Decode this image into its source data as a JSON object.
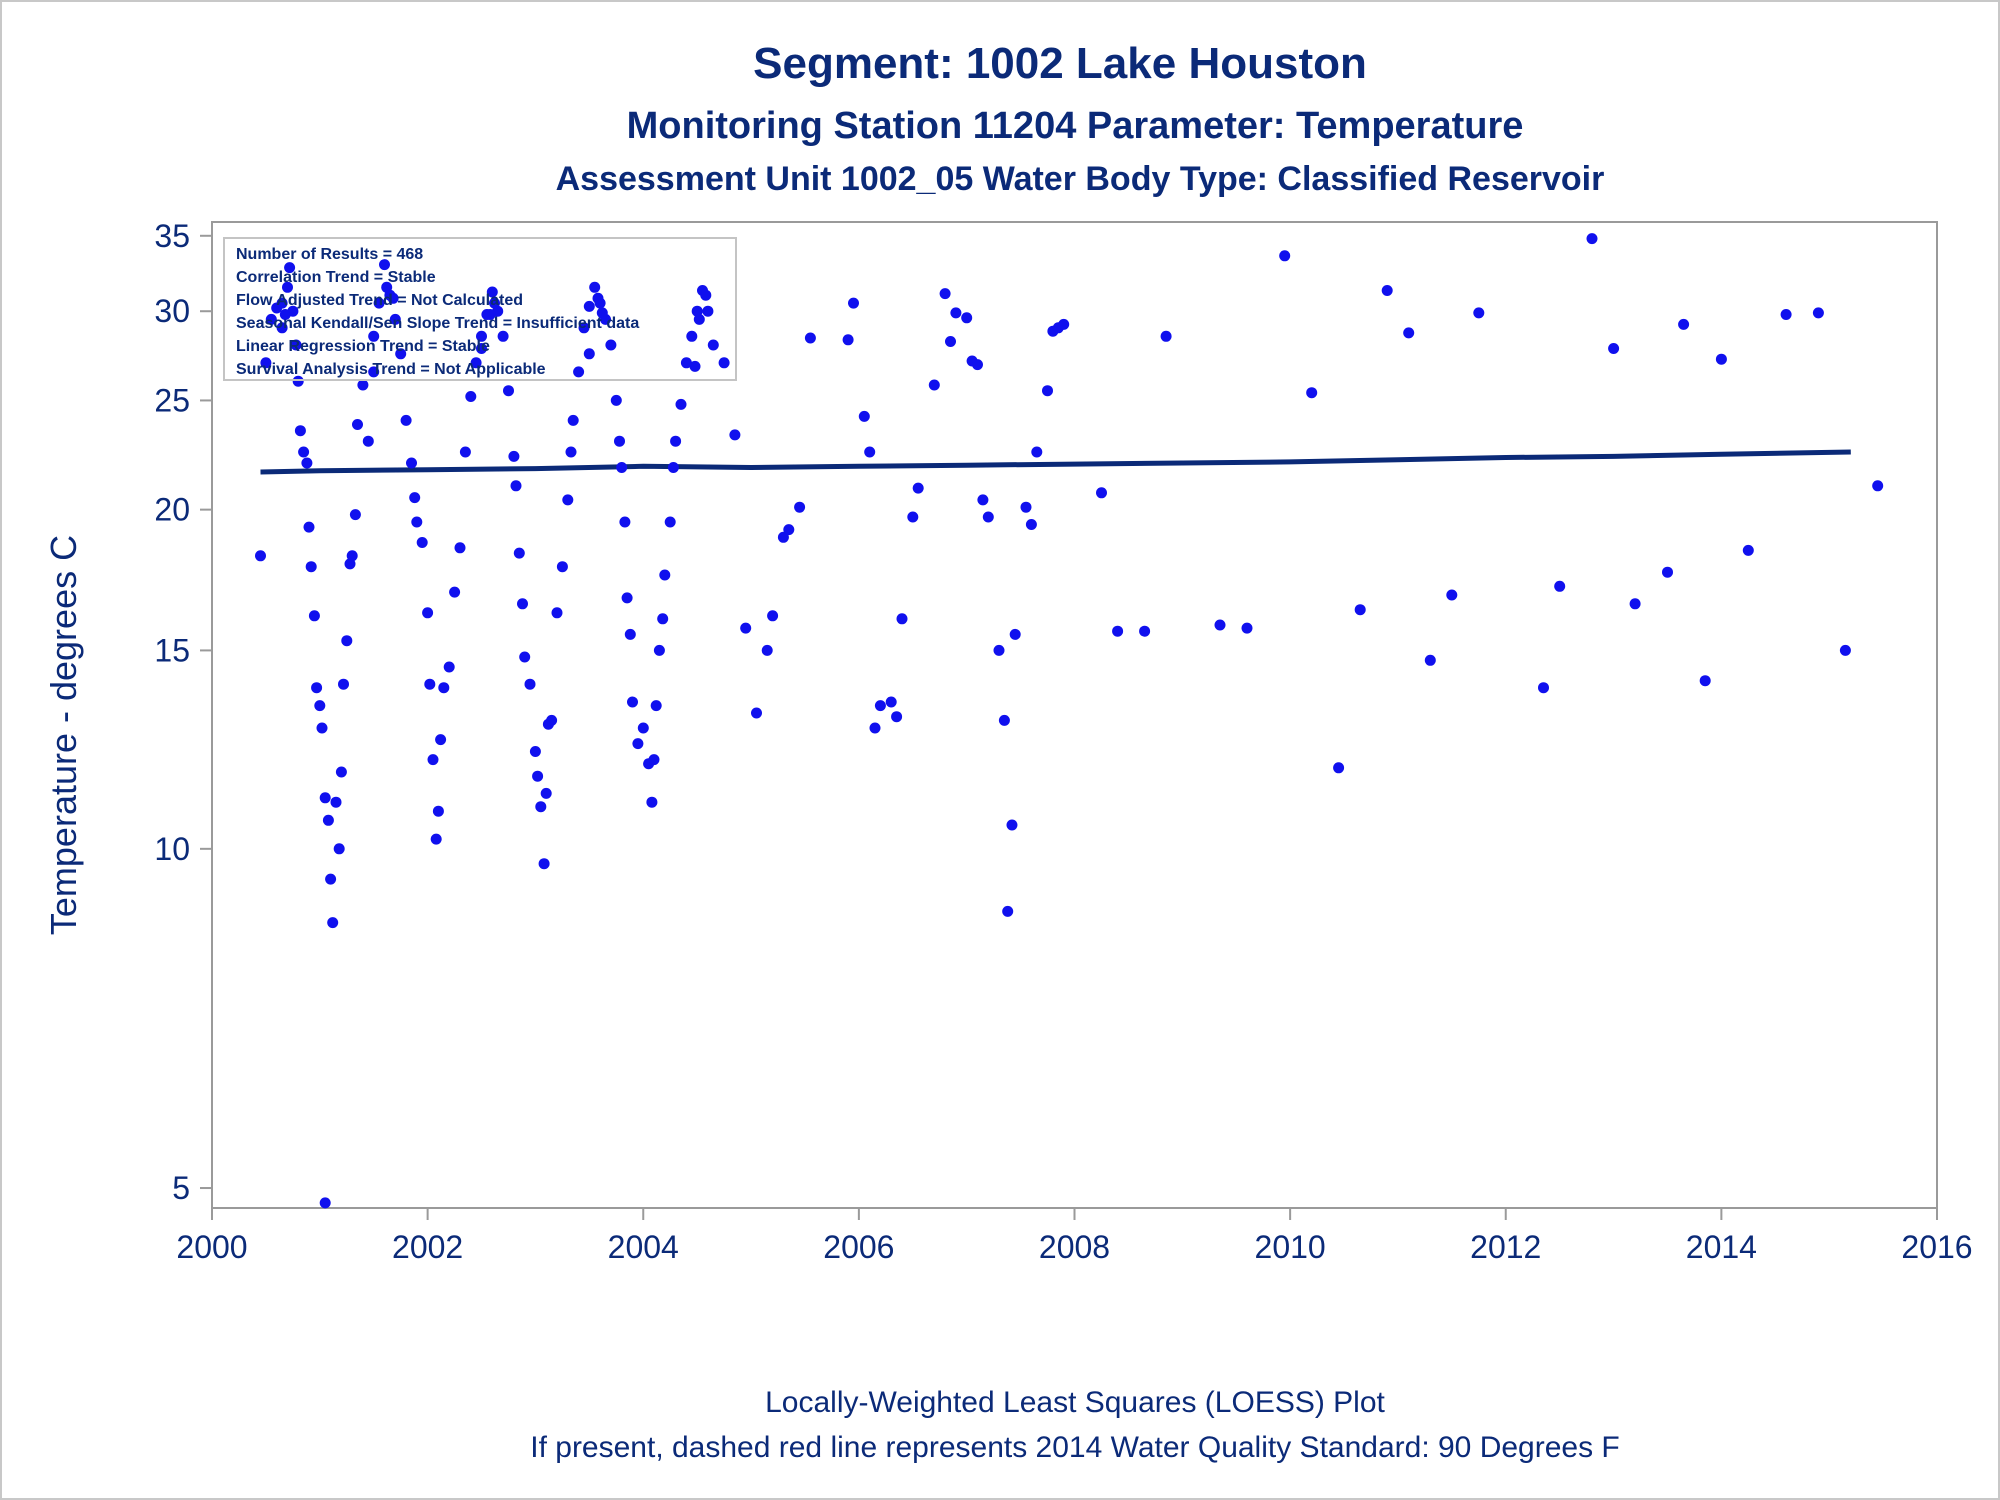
{
  "titles": {
    "line1": "Segment: 1002  Lake Houston",
    "line2": "Monitoring Station 11204 Parameter: Temperature",
    "line3": "Assessment Unit 1002_05   Water Body Type: Classified Reservoir"
  },
  "footnotes": {
    "line1": "Locally-Weighted Least Squares (LOESS) Plot",
    "line2": "If present, dashed red line represents 2014 Water Quality Standard: 90   Degrees F"
  },
  "stats_box": [
    "Number of Results = 468",
    "Correlation Trend = Stable",
    "Flow Adjusted Trend = Not Calculated",
    "Seasonal Kendall/Sen Slope Trend = Insufficient data",
    "Linear Regression Trend = Stable",
    "Survival Analysis Trend = Not Applicable"
  ],
  "colors": {
    "text": "#0b2a78",
    "points": "#1010ee",
    "loess": "#0b2a78",
    "axis": "#9a9a9a"
  },
  "chart_data": {
    "type": "scatter",
    "xlabel": "",
    "ylabel": "Temperature - degrees C",
    "y_scale": "log",
    "xlim": [
      2000,
      2016
    ],
    "ylim": [
      4.8,
      36
    ],
    "x_ticks": [
      2000,
      2002,
      2004,
      2006,
      2008,
      2010,
      2012,
      2014,
      2016
    ],
    "y_ticks": [
      5,
      10,
      15,
      20,
      25,
      30,
      35
    ],
    "legend": "top-left",
    "grid": false,
    "series": [
      {
        "type": "scatter",
        "points": [
          [
            2000.45,
            18.2
          ],
          [
            2000.5,
            27.0
          ],
          [
            2000.55,
            29.5
          ],
          [
            2000.6,
            30.2
          ],
          [
            2000.65,
            29.0
          ],
          [
            2000.7,
            31.5
          ],
          [
            2000.72,
            32.8
          ],
          [
            2000.75,
            30.0
          ],
          [
            2000.78,
            28.0
          ],
          [
            2000.8,
            26.0
          ],
          [
            2000.82,
            23.5
          ],
          [
            2000.85,
            22.5
          ],
          [
            2000.88,
            22.0
          ],
          [
            2000.9,
            19.3
          ],
          [
            2000.92,
            17.8
          ],
          [
            2000.95,
            16.1
          ],
          [
            2000.97,
            13.9
          ],
          [
            2001.0,
            13.4
          ],
          [
            2001.02,
            12.8
          ],
          [
            2001.05,
            11.1
          ],
          [
            2001.08,
            10.6
          ],
          [
            2001.1,
            9.4
          ],
          [
            2001.12,
            8.6
          ],
          [
            2001.15,
            11.0
          ],
          [
            2001.18,
            10.0
          ],
          [
            2001.2,
            11.7
          ],
          [
            2001.22,
            14.0
          ],
          [
            2001.25,
            15.3
          ],
          [
            2001.28,
            17.9
          ],
          [
            2001.3,
            18.2
          ],
          [
            2001.33,
            19.8
          ],
          [
            2001.35,
            23.8
          ],
          [
            2001.4,
            25.8
          ],
          [
            2001.45,
            23.0
          ],
          [
            2001.5,
            28.5
          ],
          [
            2001.55,
            30.5
          ],
          [
            2001.6,
            33.0
          ],
          [
            2001.65,
            31.0
          ],
          [
            2001.7,
            29.5
          ],
          [
            2001.75,
            27.5
          ],
          [
            2001.8,
            24.0
          ],
          [
            2001.85,
            22.0
          ],
          [
            2001.88,
            20.5
          ],
          [
            2001.9,
            19.5
          ],
          [
            2001.95,
            18.7
          ],
          [
            2002.0,
            16.2
          ],
          [
            2002.02,
            14.0
          ],
          [
            2002.05,
            12.0
          ],
          [
            2002.08,
            10.2
          ],
          [
            2002.1,
            10.8
          ],
          [
            2002.12,
            12.5
          ],
          [
            2002.15,
            13.9
          ],
          [
            2002.2,
            14.5
          ],
          [
            2002.25,
            16.9
          ],
          [
            2002.3,
            18.5
          ],
          [
            2002.35,
            22.5
          ],
          [
            2002.4,
            25.2
          ],
          [
            2002.45,
            27.0
          ],
          [
            2002.5,
            28.5
          ],
          [
            2002.55,
            29.8
          ],
          [
            2002.6,
            31.2
          ],
          [
            2002.65,
            30.0
          ],
          [
            2002.7,
            28.5
          ],
          [
            2002.75,
            25.5
          ],
          [
            2002.8,
            22.3
          ],
          [
            2002.82,
            21.0
          ],
          [
            2002.85,
            18.3
          ],
          [
            2002.88,
            16.5
          ],
          [
            2002.9,
            14.8
          ],
          [
            2002.95,
            14.0
          ],
          [
            2003.0,
            12.2
          ],
          [
            2003.02,
            11.6
          ],
          [
            2003.05,
            10.9
          ],
          [
            2003.08,
            9.7
          ],
          [
            2003.1,
            11.2
          ],
          [
            2003.12,
            12.9
          ],
          [
            2003.15,
            13.0
          ],
          [
            2003.2,
            16.2
          ],
          [
            2003.25,
            17.8
          ],
          [
            2003.3,
            20.4
          ],
          [
            2003.33,
            22.5
          ],
          [
            2003.35,
            24.0
          ],
          [
            2003.4,
            26.5
          ],
          [
            2003.45,
            29.0
          ],
          [
            2003.5,
            30.3
          ],
          [
            2003.55,
            31.5
          ],
          [
            2003.6,
            30.5
          ],
          [
            2003.65,
            29.5
          ],
          [
            2003.7,
            28.0
          ],
          [
            2003.75,
            25.0
          ],
          [
            2003.78,
            23.0
          ],
          [
            2003.8,
            21.8
          ],
          [
            2003.83,
            19.5
          ],
          [
            2003.85,
            16.7
          ],
          [
            2003.88,
            15.5
          ],
          [
            2003.9,
            13.5
          ],
          [
            2003.95,
            12.4
          ],
          [
            2004.0,
            12.8
          ],
          [
            2004.05,
            11.9
          ],
          [
            2004.08,
            11.0
          ],
          [
            2004.1,
            12.0
          ],
          [
            2004.12,
            13.4
          ],
          [
            2004.15,
            15.0
          ],
          [
            2004.18,
            16.0
          ],
          [
            2004.2,
            17.5
          ],
          [
            2004.25,
            19.5
          ],
          [
            2004.28,
            21.8
          ],
          [
            2004.3,
            23.0
          ],
          [
            2004.35,
            24.8
          ],
          [
            2004.4,
            27.0
          ],
          [
            2004.45,
            28.5
          ],
          [
            2004.5,
            30.0
          ],
          [
            2004.55,
            31.3
          ],
          [
            2004.6,
            30.0
          ],
          [
            2004.65,
            28.0
          ],
          [
            2004.75,
            27.0
          ],
          [
            2004.85,
            23.3
          ],
          [
            2004.95,
            15.7
          ],
          [
            2005.05,
            13.2
          ],
          [
            2005.15,
            15.0
          ],
          [
            2005.2,
            16.1
          ],
          [
            2005.3,
            18.9
          ],
          [
            2005.35,
            19.2
          ],
          [
            2005.45,
            20.1
          ],
          [
            2005.55,
            28.4
          ],
          [
            2005.9,
            28.3
          ],
          [
            2005.95,
            30.5
          ],
          [
            2006.05,
            24.2
          ],
          [
            2006.1,
            22.5
          ],
          [
            2006.15,
            12.8
          ],
          [
            2006.2,
            13.4
          ],
          [
            2006.3,
            13.5
          ],
          [
            2006.35,
            13.1
          ],
          [
            2006.4,
            16.0
          ],
          [
            2006.5,
            19.7
          ],
          [
            2006.55,
            20.9
          ],
          [
            2006.7,
            25.8
          ],
          [
            2006.8,
            31.1
          ],
          [
            2006.85,
            28.2
          ],
          [
            2006.9,
            29.9
          ],
          [
            2007.0,
            29.6
          ],
          [
            2007.05,
            27.1
          ],
          [
            2007.1,
            26.9
          ],
          [
            2007.15,
            20.4
          ],
          [
            2007.2,
            19.7
          ],
          [
            2007.3,
            15.0
          ],
          [
            2007.35,
            13.0
          ],
          [
            2007.38,
            8.8
          ],
          [
            2007.42,
            10.5
          ],
          [
            2007.45,
            15.5
          ],
          [
            2007.55,
            20.1
          ],
          [
            2007.6,
            19.4
          ],
          [
            2007.65,
            22.5
          ],
          [
            2007.75,
            25.5
          ],
          [
            2007.8,
            28.8
          ],
          [
            2007.85,
            29.0
          ],
          [
            2007.9,
            29.2
          ],
          [
            2008.25,
            20.7
          ],
          [
            2008.4,
            15.6
          ],
          [
            2008.65,
            15.6
          ],
          [
            2008.85,
            28.5
          ],
          [
            2009.35,
            15.8
          ],
          [
            2009.6,
            15.7
          ],
          [
            2009.95,
            33.6
          ],
          [
            2010.2,
            25.4
          ],
          [
            2010.45,
            11.8
          ],
          [
            2010.65,
            16.3
          ],
          [
            2010.9,
            31.3
          ],
          [
            2011.1,
            28.7
          ],
          [
            2011.3,
            14.7
          ],
          [
            2011.5,
            16.8
          ],
          [
            2011.75,
            29.9
          ],
          [
            2012.35,
            13.9
          ],
          [
            2012.5,
            17.1
          ],
          [
            2012.8,
            34.8
          ],
          [
            2013.0,
            27.8
          ],
          [
            2013.2,
            16.5
          ],
          [
            2013.5,
            17.6
          ],
          [
            2013.65,
            29.2
          ],
          [
            2013.85,
            14.1
          ],
          [
            2014.0,
            27.2
          ],
          [
            2014.25,
            18.4
          ],
          [
            2014.6,
            29.8
          ],
          [
            2014.9,
            29.9
          ],
          [
            2015.15,
            15.0
          ],
          [
            2015.45,
            21.0
          ],
          [
            2001.05,
            4.85
          ],
          [
            2000.65,
            30.5
          ],
          [
            2000.68,
            29.8
          ],
          [
            2001.62,
            31.5
          ],
          [
            2001.68,
            30.8
          ],
          [
            2002.62,
            30.5
          ],
          [
            2002.58,
            29.8
          ],
          [
            2003.58,
            30.8
          ],
          [
            2003.62,
            29.9
          ],
          [
            2004.52,
            29.5
          ],
          [
            2004.58,
            31.0
          ],
          [
            2001.5,
            26.5
          ],
          [
            2002.5,
            27.8
          ],
          [
            2003.5,
            27.5
          ],
          [
            2004.48,
            26.8
          ]
        ]
      },
      {
        "type": "line",
        "points": [
          [
            2000.45,
            21.6
          ],
          [
            2001.0,
            21.65
          ],
          [
            2002.0,
            21.7
          ],
          [
            2003.0,
            21.75
          ],
          [
            2004.0,
            21.85
          ],
          [
            2005.0,
            21.8
          ],
          [
            2006.0,
            21.85
          ],
          [
            2007.0,
            21.9
          ],
          [
            2008.0,
            21.95
          ],
          [
            2009.0,
            22.0
          ],
          [
            2010.0,
            22.05
          ],
          [
            2011.0,
            22.15
          ],
          [
            2012.0,
            22.25
          ],
          [
            2013.0,
            22.3
          ],
          [
            2014.0,
            22.4
          ],
          [
            2015.2,
            22.5
          ]
        ]
      }
    ]
  }
}
